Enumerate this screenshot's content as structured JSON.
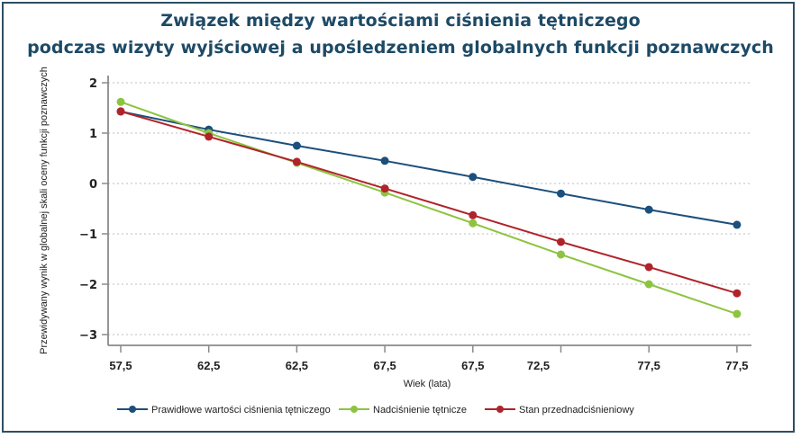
{
  "chart_data": {
    "type": "line",
    "title_line1": "Związek między wartościami ciśnienia tętniczego",
    "title_line2": "podczas wizyty wyjściowej a upośledzeniem globalnych funkcji poznawczych",
    "xlabel": "Wiek (lata)",
    "ylabel": "Przewidywany wynik w globalnej skali oceny funkcji poznawczych",
    "categories": [
      "57,5",
      "62,5",
      "62,5",
      "67,5",
      "67,5",
      "72,5",
      "77,5",
      "77,5"
    ],
    "yticks": [
      "2",
      "1",
      "0",
      "−1",
      "−2",
      "−3"
    ],
    "ytick_values": [
      2,
      1,
      0,
      -1,
      -2,
      -3
    ],
    "ylim": [
      -3.2,
      2.2
    ],
    "grid": true,
    "legend_position": "bottom",
    "series": [
      {
        "name": "Prawidłowe wartości ciśnienia tętniczego",
        "color": "#1c4f7c",
        "values": [
          1.43,
          1.07,
          0.75,
          0.45,
          0.13,
          -0.2,
          -0.52,
          -0.82
        ]
      },
      {
        "name": "Nadciśnienie tętnicze",
        "color": "#8cc43f",
        "values": [
          1.62,
          1.0,
          0.41,
          -0.18,
          -0.79,
          -1.41,
          -2.0,
          -2.59
        ]
      },
      {
        "name": "Stan przednadciśnieniowy",
        "color": "#b0232b",
        "values": [
          1.43,
          0.93,
          0.43,
          -0.1,
          -0.63,
          -1.16,
          -1.66,
          -2.18
        ]
      }
    ]
  }
}
